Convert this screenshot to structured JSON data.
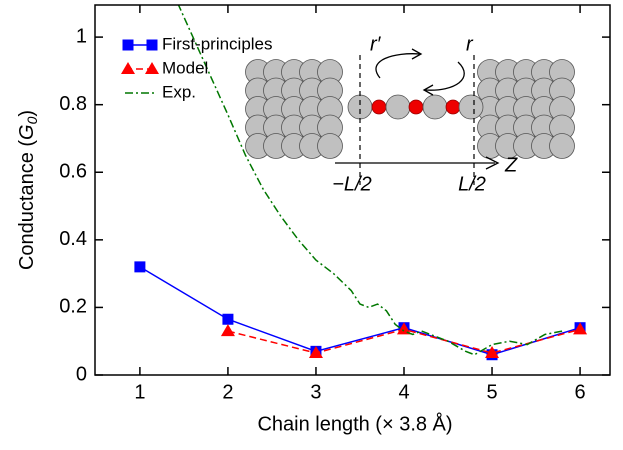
{
  "chart_data": {
    "type": "line",
    "xlabel": "Chain length (× 3.8 Å)",
    "ylabel_parts": [
      "Conductance (",
      "G",
      "0",
      ")"
    ],
    "xlim": [
      0.49,
      6.34
    ],
    "ylim": [
      0,
      1.095
    ],
    "xticks": [
      1,
      2,
      3,
      4,
      5,
      6
    ],
    "yticks": [
      0,
      0.2,
      0.4,
      0.6,
      0.8,
      1
    ],
    "series": [
      {
        "name": "First-principles",
        "color": "#0000ff",
        "marker": "square",
        "dash": "solid",
        "x": [
          1,
          2,
          3,
          4,
          5,
          6
        ],
        "values": [
          0.32,
          0.165,
          0.07,
          0.14,
          0.06,
          0.14
        ]
      },
      {
        "name": "Model",
        "color": "#ff0000",
        "marker": "triangle",
        "dash": "dashed",
        "x": [
          2,
          3,
          4,
          5,
          6
        ],
        "values": [
          0.13,
          0.065,
          0.135,
          0.065,
          0.135
        ]
      },
      {
        "name": "Exp.",
        "color": "#007700",
        "marker": "none",
        "dash": "dashdot",
        "x": [
          1.43,
          2.0,
          2.2,
          2.4,
          2.6,
          2.8,
          3.0,
          3.2,
          3.4,
          3.5,
          3.6,
          3.7,
          3.8,
          3.9,
          4.0,
          4.1,
          4.2,
          4.3,
          4.5,
          4.7,
          4.8,
          5.0,
          5.2,
          5.4,
          5.6,
          5.8
        ],
        "values": [
          1.1,
          0.77,
          0.65,
          0.55,
          0.47,
          0.4,
          0.34,
          0.3,
          0.25,
          0.21,
          0.2,
          0.21,
          0.19,
          0.15,
          0.13,
          0.12,
          0.13,
          0.12,
          0.1,
          0.07,
          0.06,
          0.09,
          0.1,
          0.09,
          0.12,
          0.13
        ]
      }
    ],
    "inset_labels": {
      "r_prime": "r′",
      "r": "r",
      "left_edge": "−L/2",
      "right_edge": "L/2",
      "axis": "Z"
    }
  }
}
